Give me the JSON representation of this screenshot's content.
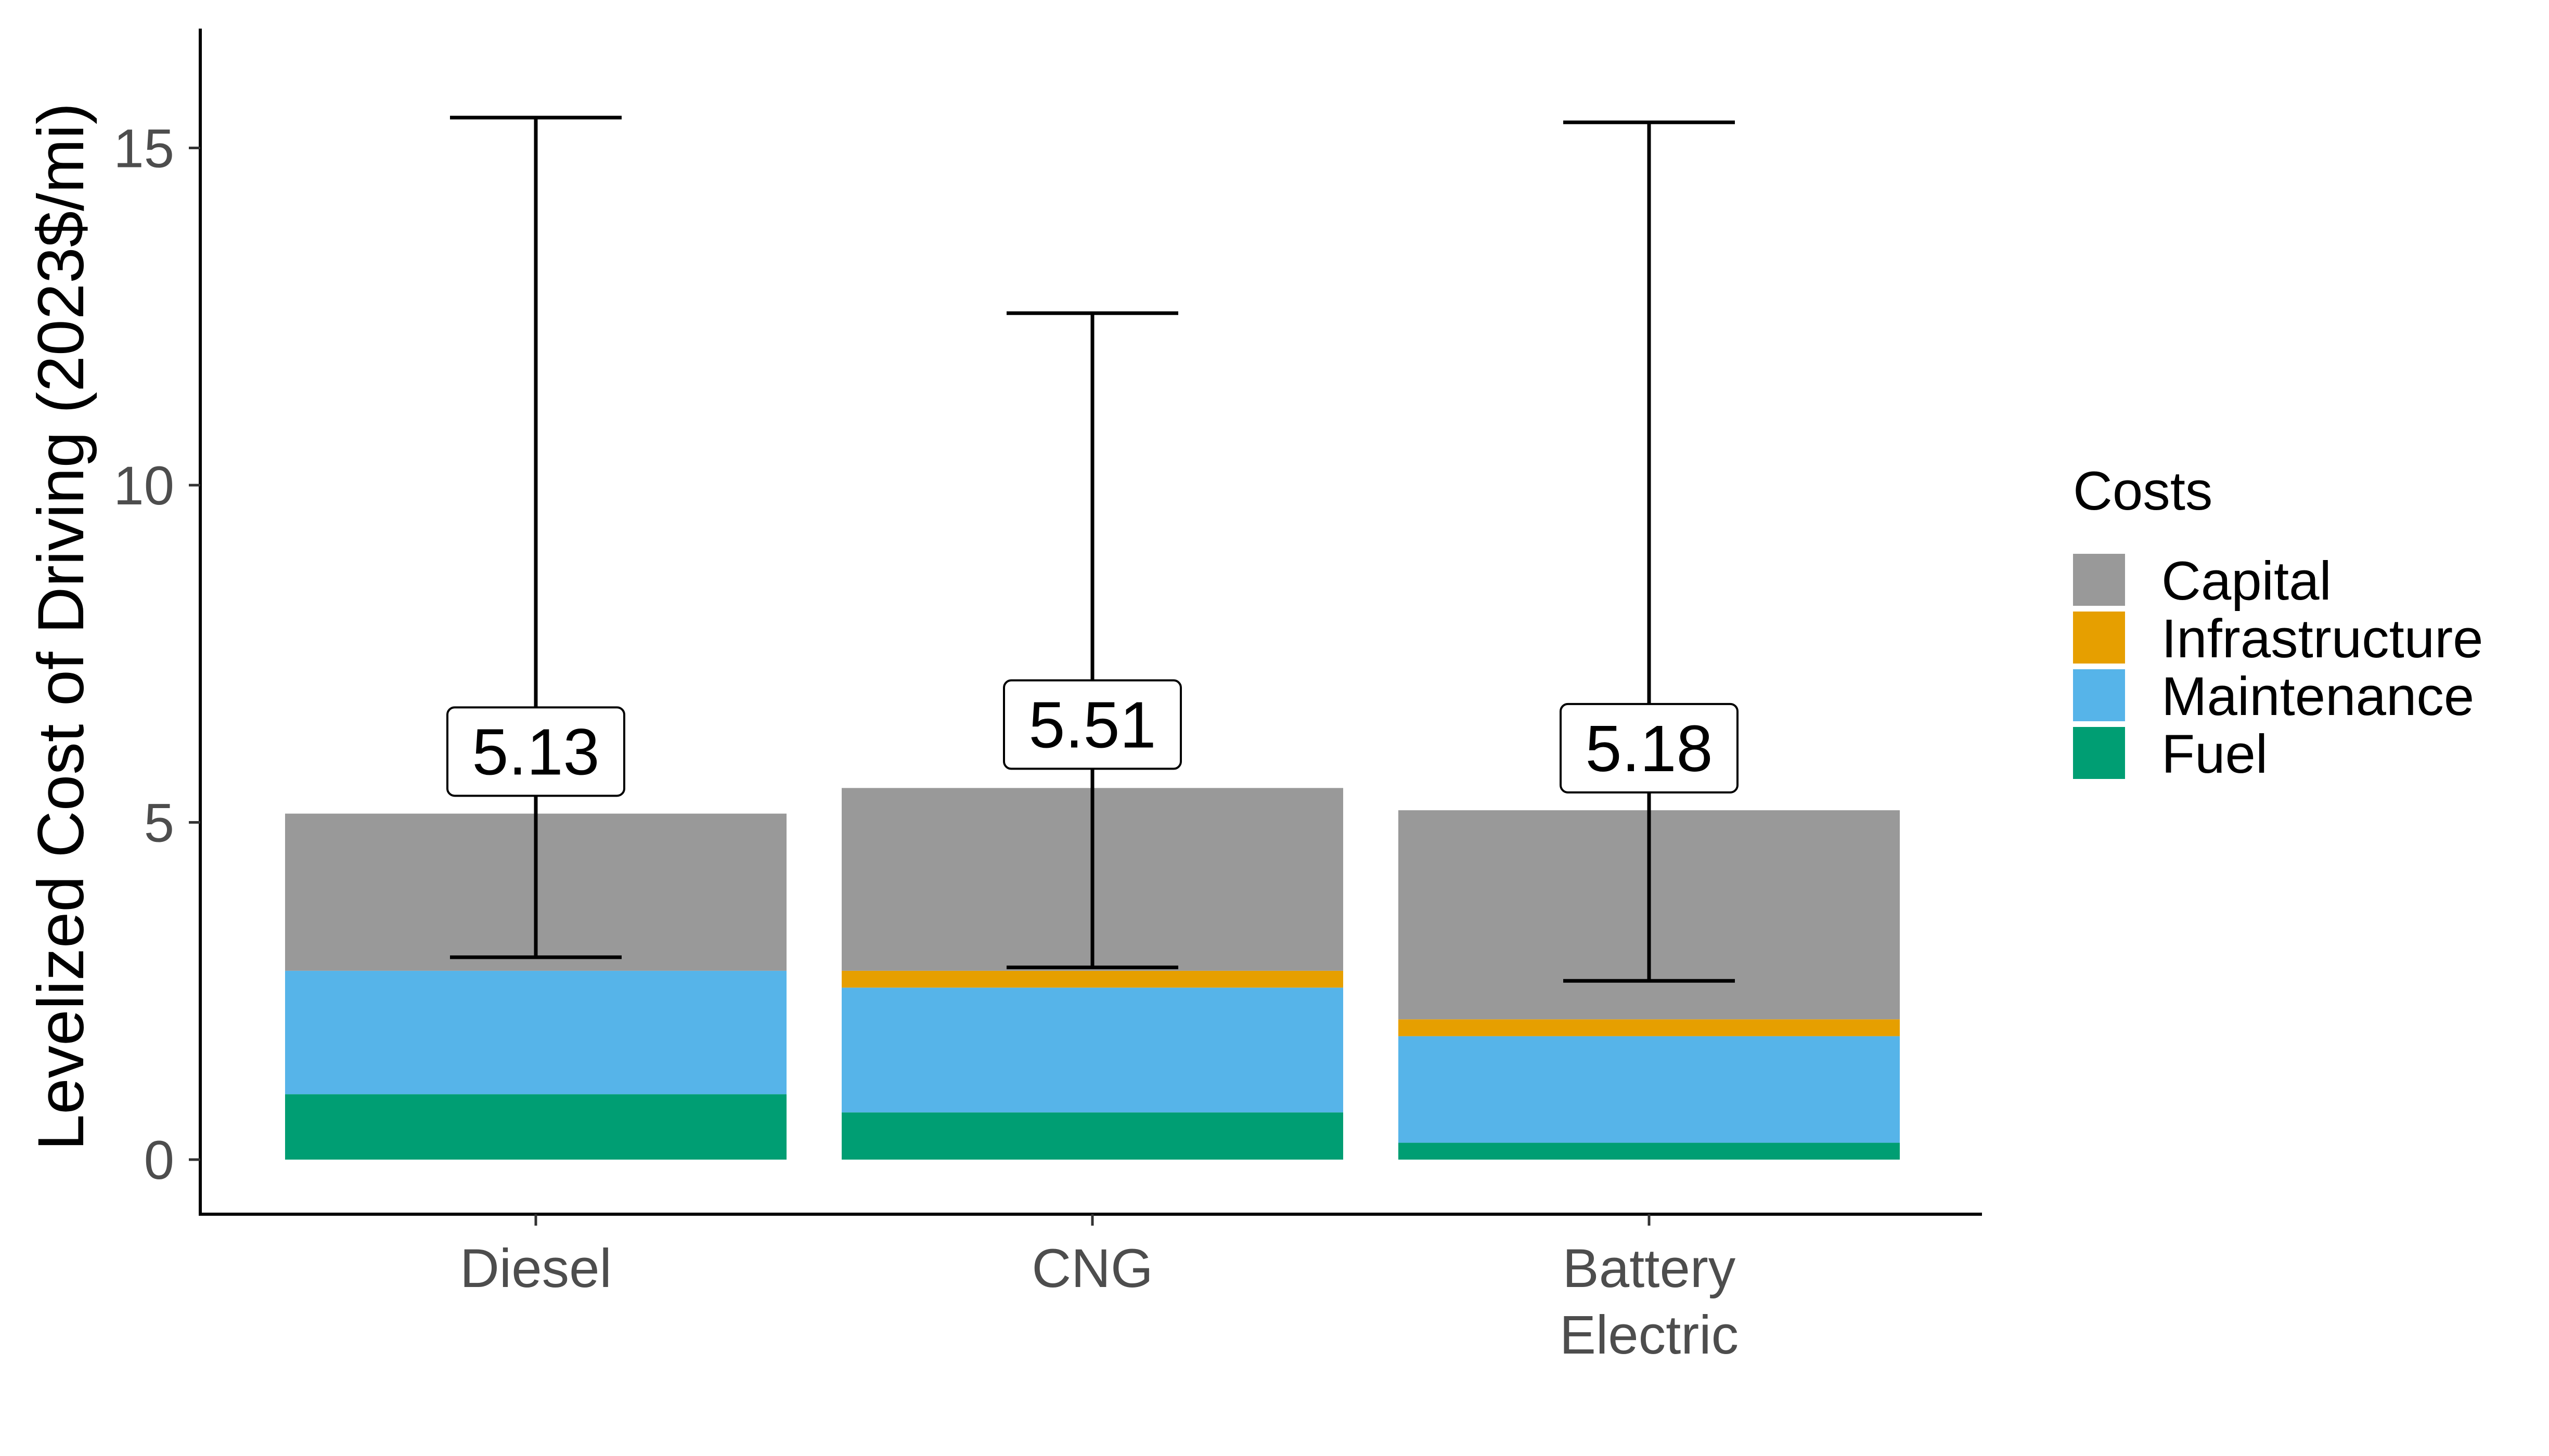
{
  "chart_data": {
    "type": "bar",
    "stacked": true,
    "title": "",
    "xlabel": "",
    "ylabel": "Levelized Cost of Driving (2023$/mi)",
    "ylim": [
      -0.8,
      16.8
    ],
    "yticks": [
      0,
      5,
      10,
      15
    ],
    "grid": false,
    "legend_position": "right",
    "categories": [
      [
        "Diesel"
      ],
      [
        "CNG"
      ],
      [
        "Battery",
        "Electric"
      ]
    ],
    "series": [
      {
        "name": "Fuel",
        "color": "#009E73",
        "values": [
          0.97,
          0.7,
          0.25
        ]
      },
      {
        "name": "Maintenance",
        "color": "#56B4E9",
        "values": [
          1.83,
          1.85,
          1.58
        ]
      },
      {
        "name": "Infrastructure",
        "color": "#E69F00",
        "values": [
          0.0,
          0.25,
          0.25
        ]
      },
      {
        "name": "Capital",
        "color": "#999999",
        "values": [
          2.33,
          2.71,
          3.1
        ]
      }
    ],
    "totals": [
      "5.13",
      "5.51",
      "5.18"
    ],
    "total_values": [
      5.13,
      5.51,
      5.18
    ],
    "total_label_y": [
      6.05,
      6.45,
      6.1
    ],
    "error_bars": [
      {
        "low": 3.0,
        "high": 15.45
      },
      {
        "low": 2.85,
        "high": 12.55
      },
      {
        "low": 2.65,
        "high": 15.38
      }
    ],
    "legend": {
      "title": "Costs",
      "items": [
        "Capital",
        "Infrastructure",
        "Maintenance",
        "Fuel"
      ]
    }
  }
}
